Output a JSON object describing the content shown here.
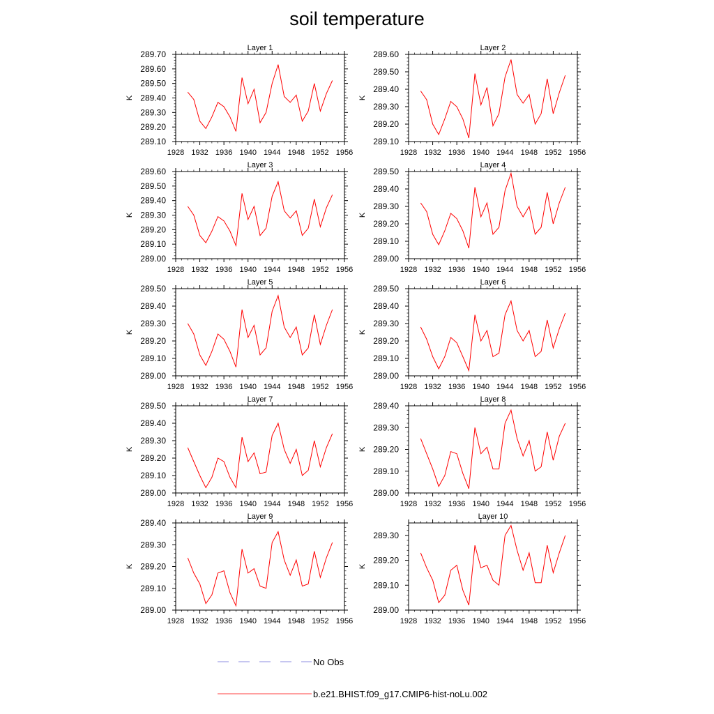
{
  "title": "soil temperature",
  "legend": {
    "no_obs_label": "No Obs",
    "no_obs_color": "#6a6ad8",
    "model_label": "b.e21.BHIST.f09_g17.CMIP6-hist-noLu.002",
    "model_color": "#ff0000"
  },
  "chart_data": [
    {
      "type": "line",
      "subtitle": "Layer 1",
      "ylabel": "K",
      "xlim": [
        1928,
        1956
      ],
      "xticks": [
        "1928",
        "1932",
        "1936",
        "1940",
        "1944",
        "1948",
        "1952",
        "1956"
      ],
      "ylim": [
        289.1,
        289.7
      ],
      "yticks": [
        "289.10",
        "289.20",
        "289.30",
        "289.40",
        "289.50",
        "289.60",
        "289.70"
      ],
      "x": [
        1930,
        1931,
        1932,
        1933,
        1934,
        1935,
        1936,
        1937,
        1938,
        1939,
        1940,
        1941,
        1942,
        1943,
        1944,
        1945,
        1946,
        1947,
        1948,
        1949,
        1950,
        1951,
        1952,
        1953,
        1954
      ],
      "values": [
        289.44,
        289.39,
        289.24,
        289.19,
        289.27,
        289.37,
        289.34,
        289.27,
        289.17,
        289.54,
        289.36,
        289.46,
        289.23,
        289.3,
        289.5,
        289.63,
        289.41,
        289.37,
        289.42,
        289.24,
        289.31,
        289.5,
        289.31,
        289.43,
        289.52
      ]
    },
    {
      "type": "line",
      "subtitle": "Layer 2",
      "ylabel": "K",
      "xlim": [
        1928,
        1956
      ],
      "xticks": [
        "1928",
        "1932",
        "1936",
        "1940",
        "1944",
        "1948",
        "1952",
        "1956"
      ],
      "ylim": [
        289.1,
        289.6
      ],
      "yticks": [
        "289.10",
        "289.20",
        "289.30",
        "289.40",
        "289.50",
        "289.60"
      ],
      "x": [
        1930,
        1931,
        1932,
        1933,
        1934,
        1935,
        1936,
        1937,
        1938,
        1939,
        1940,
        1941,
        1942,
        1943,
        1944,
        1945,
        1946,
        1947,
        1948,
        1949,
        1950,
        1951,
        1952,
        1953,
        1954
      ],
      "values": [
        289.39,
        289.34,
        289.2,
        289.14,
        289.23,
        289.33,
        289.3,
        289.23,
        289.12,
        289.49,
        289.31,
        289.41,
        289.19,
        289.26,
        289.47,
        289.57,
        289.37,
        289.32,
        289.37,
        289.2,
        289.26,
        289.46,
        289.26,
        289.38,
        289.48
      ]
    },
    {
      "type": "line",
      "subtitle": "Layer 3",
      "ylabel": "K",
      "xlim": [
        1928,
        1956
      ],
      "xticks": [
        "1928",
        "1932",
        "1936",
        "1940",
        "1944",
        "1948",
        "1952",
        "1956"
      ],
      "ylim": [
        289.0,
        289.6
      ],
      "yticks": [
        "289.00",
        "289.10",
        "289.20",
        "289.30",
        "289.40",
        "289.50",
        "289.60"
      ],
      "x": [
        1930,
        1931,
        1932,
        1933,
        1934,
        1935,
        1936,
        1937,
        1938,
        1939,
        1940,
        1941,
        1942,
        1943,
        1944,
        1945,
        1946,
        1947,
        1948,
        1949,
        1950,
        1951,
        1952,
        1953,
        1954
      ],
      "values": [
        289.36,
        289.3,
        289.16,
        289.11,
        289.19,
        289.29,
        289.26,
        289.19,
        289.09,
        289.45,
        289.27,
        289.36,
        289.16,
        289.21,
        289.43,
        289.53,
        289.33,
        289.28,
        289.33,
        289.16,
        289.21,
        289.41,
        289.22,
        289.35,
        289.44
      ]
    },
    {
      "type": "line",
      "subtitle": "Layer 4",
      "ylabel": "K",
      "xlim": [
        1928,
        1956
      ],
      "xticks": [
        "1928",
        "1932",
        "1936",
        "1940",
        "1944",
        "1948",
        "1952",
        "1956"
      ],
      "ylim": [
        289.0,
        289.5
      ],
      "yticks": [
        "289.00",
        "289.10",
        "289.20",
        "289.30",
        "289.40",
        "289.50"
      ],
      "x": [
        1930,
        1931,
        1932,
        1933,
        1934,
        1935,
        1936,
        1937,
        1938,
        1939,
        1940,
        1941,
        1942,
        1943,
        1944,
        1945,
        1946,
        1947,
        1948,
        1949,
        1950,
        1951,
        1952,
        1953,
        1954
      ],
      "values": [
        289.32,
        289.27,
        289.14,
        289.08,
        289.16,
        289.26,
        289.23,
        289.16,
        289.06,
        289.41,
        289.24,
        289.32,
        289.14,
        289.18,
        289.39,
        289.49,
        289.3,
        289.24,
        289.3,
        289.14,
        289.18,
        289.38,
        289.2,
        289.32,
        289.41
      ]
    },
    {
      "type": "line",
      "subtitle": "Layer 5",
      "ylabel": "K",
      "xlim": [
        1928,
        1956
      ],
      "xticks": [
        "1928",
        "1932",
        "1936",
        "1940",
        "1944",
        "1948",
        "1952",
        "1956"
      ],
      "ylim": [
        289.0,
        289.5
      ],
      "yticks": [
        "289.00",
        "289.10",
        "289.20",
        "289.30",
        "289.40",
        "289.50"
      ],
      "x": [
        1930,
        1931,
        1932,
        1933,
        1934,
        1935,
        1936,
        1937,
        1938,
        1939,
        1940,
        1941,
        1942,
        1943,
        1944,
        1945,
        1946,
        1947,
        1948,
        1949,
        1950,
        1951,
        1952,
        1953,
        1954
      ],
      "values": [
        289.3,
        289.24,
        289.12,
        289.06,
        289.14,
        289.24,
        289.21,
        289.14,
        289.05,
        289.38,
        289.22,
        289.29,
        289.12,
        289.16,
        289.37,
        289.46,
        289.28,
        289.22,
        289.28,
        289.12,
        289.16,
        289.35,
        289.18,
        289.29,
        289.38
      ]
    },
    {
      "type": "line",
      "subtitle": "Layer 6",
      "ylabel": "K",
      "xlim": [
        1928,
        1956
      ],
      "xticks": [
        "1928",
        "1932",
        "1936",
        "1940",
        "1944",
        "1948",
        "1952",
        "1956"
      ],
      "ylim": [
        289.0,
        289.5
      ],
      "yticks": [
        "289.00",
        "289.10",
        "289.20",
        "289.30",
        "289.40",
        "289.50"
      ],
      "x": [
        1930,
        1931,
        1932,
        1933,
        1934,
        1935,
        1936,
        1937,
        1938,
        1939,
        1940,
        1941,
        1942,
        1943,
        1944,
        1945,
        1946,
        1947,
        1948,
        1949,
        1950,
        1951,
        1952,
        1953,
        1954
      ],
      "values": [
        289.28,
        289.21,
        289.11,
        289.04,
        289.11,
        289.22,
        289.19,
        289.11,
        289.03,
        289.35,
        289.2,
        289.26,
        289.11,
        289.13,
        289.35,
        289.43,
        289.26,
        289.2,
        289.26,
        289.11,
        289.14,
        289.32,
        289.16,
        289.27,
        289.36
      ]
    },
    {
      "type": "line",
      "subtitle": "Layer 7",
      "ylabel": "K",
      "xlim": [
        1928,
        1956
      ],
      "xticks": [
        "1928",
        "1932",
        "1936",
        "1940",
        "1944",
        "1948",
        "1952",
        "1956"
      ],
      "ylim": [
        289.0,
        289.5
      ],
      "yticks": [
        "289.00",
        "289.10",
        "289.20",
        "289.30",
        "289.40",
        "289.50"
      ],
      "x": [
        1930,
        1931,
        1932,
        1933,
        1934,
        1935,
        1936,
        1937,
        1938,
        1939,
        1940,
        1941,
        1942,
        1943,
        1944,
        1945,
        1946,
        1947,
        1948,
        1949,
        1950,
        1951,
        1952,
        1953,
        1954
      ],
      "values": [
        289.26,
        289.18,
        289.1,
        289.03,
        289.09,
        289.2,
        289.18,
        289.09,
        289.03,
        289.32,
        289.18,
        289.23,
        289.11,
        289.12,
        289.33,
        289.4,
        289.25,
        289.17,
        289.25,
        289.1,
        289.13,
        289.3,
        289.15,
        289.26,
        289.34
      ]
    },
    {
      "type": "line",
      "subtitle": "Layer 8",
      "ylabel": "K",
      "xlim": [
        1928,
        1956
      ],
      "xticks": [
        "1928",
        "1932",
        "1936",
        "1940",
        "1944",
        "1948",
        "1952",
        "1956"
      ],
      "ylim": [
        289.0,
        289.4
      ],
      "yticks": [
        "289.00",
        "289.10",
        "289.20",
        "289.30",
        "289.40"
      ],
      "x": [
        1930,
        1931,
        1932,
        1933,
        1934,
        1935,
        1936,
        1937,
        1938,
        1939,
        1940,
        1941,
        1942,
        1943,
        1944,
        1945,
        1946,
        1947,
        1948,
        1949,
        1950,
        1951,
        1952,
        1953,
        1954
      ],
      "values": [
        289.25,
        289.18,
        289.11,
        289.03,
        289.08,
        289.19,
        289.18,
        289.09,
        289.02,
        289.3,
        289.18,
        289.21,
        289.11,
        289.11,
        289.32,
        289.38,
        289.25,
        289.17,
        289.24,
        289.1,
        289.12,
        289.28,
        289.15,
        289.26,
        289.32
      ]
    },
    {
      "type": "line",
      "subtitle": "Layer 9",
      "ylabel": "K",
      "xlim": [
        1928,
        1956
      ],
      "xticks": [
        "1928",
        "1932",
        "1936",
        "1940",
        "1944",
        "1948",
        "1952",
        "1956"
      ],
      "ylim": [
        289.0,
        289.4
      ],
      "yticks": [
        "289.00",
        "289.10",
        "289.20",
        "289.30",
        "289.40"
      ],
      "x": [
        1930,
        1931,
        1932,
        1933,
        1934,
        1935,
        1936,
        1937,
        1938,
        1939,
        1940,
        1941,
        1942,
        1943,
        1944,
        1945,
        1946,
        1947,
        1948,
        1949,
        1950,
        1951,
        1952,
        1953,
        1954
      ],
      "values": [
        289.24,
        289.17,
        289.12,
        289.03,
        289.07,
        289.17,
        289.18,
        289.08,
        289.02,
        289.28,
        289.17,
        289.19,
        289.11,
        289.1,
        289.31,
        289.36,
        289.23,
        289.16,
        289.23,
        289.11,
        289.12,
        289.27,
        289.15,
        289.24,
        289.31
      ]
    },
    {
      "type": "line",
      "subtitle": "Layer 10",
      "ylabel": "K",
      "xlim": [
        1928,
        1956
      ],
      "xticks": [
        "1928",
        "1932",
        "1936",
        "1940",
        "1944",
        "1948",
        "1952",
        "1956"
      ],
      "ylim": [
        289.0,
        289.35
      ],
      "yticks": [
        "289.00",
        "289.10",
        "289.20",
        "289.30"
      ],
      "x": [
        1930,
        1931,
        1932,
        1933,
        1934,
        1935,
        1936,
        1937,
        1938,
        1939,
        1940,
        1941,
        1942,
        1943,
        1944,
        1945,
        1946,
        1947,
        1948,
        1949,
        1950,
        1951,
        1952,
        1953,
        1954
      ],
      "values": [
        289.23,
        289.17,
        289.12,
        289.03,
        289.06,
        289.16,
        289.18,
        289.08,
        289.02,
        289.26,
        289.17,
        289.18,
        289.12,
        289.1,
        289.3,
        289.34,
        289.24,
        289.16,
        289.23,
        289.11,
        289.11,
        289.26,
        289.15,
        289.23,
        289.3
      ]
    }
  ]
}
